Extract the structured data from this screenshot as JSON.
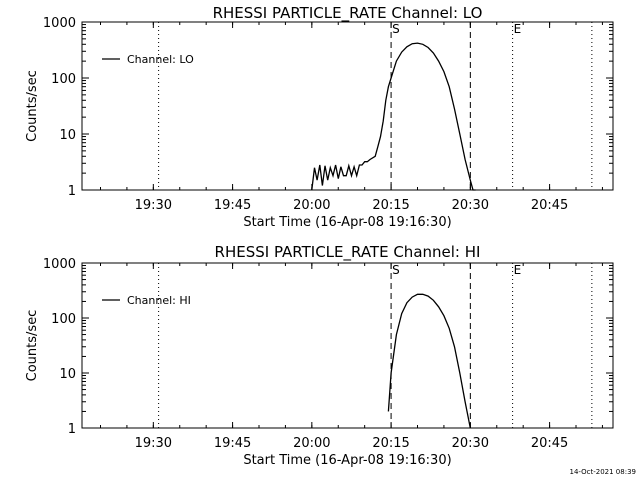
{
  "footer_timestamp": "14-Oct-2021 08:39",
  "colors": {
    "background": "#ffffff",
    "ink": "#000000"
  },
  "chart_data": [
    {
      "type": "line",
      "title": "RHESSI PARTICLE_RATE Channel: LO",
      "xlabel": "Start Time (16-Apr-08 19:16:30)",
      "ylabel": "Counts/sec",
      "xlim": [
        "19:16:30",
        "20:57:00"
      ],
      "x_ticks": [
        "19:30",
        "19:45",
        "20:00",
        "20:15",
        "20:30",
        "20:45"
      ],
      "ylim": [
        1,
        1000
      ],
      "y_scale": "log",
      "y_ticks": [
        "1",
        "10",
        "100",
        "1000"
      ],
      "grid": false,
      "legend_position": "top-left",
      "series": [
        {
          "name": "Channel: LO",
          "x": [
            "20:00:00",
            "20:00:30",
            "20:01:00",
            "20:01:30",
            "20:02:00",
            "20:02:30",
            "20:03:00",
            "20:03:30",
            "20:04:00",
            "20:04:30",
            "20:05:00",
            "20:05:30",
            "20:06:00",
            "20:06:30",
            "20:07:00",
            "20:07:30",
            "20:08:00",
            "20:08:30",
            "20:09:00",
            "20:09:30",
            "20:10:00",
            "20:10:30",
            "20:11:00",
            "20:12:00",
            "20:12:30",
            "20:13:00",
            "20:13:30",
            "20:14:00",
            "20:14:30",
            "20:15:00",
            "20:16:00",
            "20:17:00",
            "20:18:00",
            "20:19:00",
            "20:20:00",
            "20:21:00",
            "20:22:00",
            "20:23:00",
            "20:24:00",
            "20:25:00",
            "20:26:00",
            "20:27:00",
            "20:28:00",
            "20:29:00",
            "20:30:00",
            "20:30:30",
            "20:31:00"
          ],
          "y": [
            1,
            2.5,
            1.5,
            2.8,
            1.2,
            2.7,
            1.5,
            2.5,
            1.8,
            2.8,
            1.6,
            2.6,
            1.8,
            1.8,
            2.7,
            1.8,
            2.6,
            1.8,
            2.8,
            2.8,
            3.2,
            3.2,
            3.5,
            4,
            6,
            9,
            17,
            40,
            70,
            100,
            200,
            290,
            360,
            410,
            420,
            400,
            350,
            280,
            200,
            130,
            70,
            28,
            10,
            3.5,
            1.5,
            1,
            1
          ]
        }
      ],
      "markers": [
        {
          "x": "19:31:00",
          "style": "dotted",
          "label": ""
        },
        {
          "x": "20:15:00",
          "style": "dashed",
          "label": "S"
        },
        {
          "x": "20:30:00",
          "style": "dashed",
          "label": ""
        },
        {
          "x": "20:38:00",
          "style": "dotted",
          "label": "E"
        },
        {
          "x": "20:53:00",
          "style": "dotted",
          "label": ""
        }
      ]
    },
    {
      "type": "line",
      "title": "RHESSI PARTICLE_RATE Channel: HI",
      "xlabel": "Start Time (16-Apr-08 19:16:30)",
      "ylabel": "Counts/sec",
      "xlim": [
        "19:16:30",
        "20:57:00"
      ],
      "x_ticks": [
        "19:30",
        "19:45",
        "20:00",
        "20:15",
        "20:30",
        "20:45"
      ],
      "ylim": [
        1,
        1000
      ],
      "y_scale": "log",
      "y_ticks": [
        "1",
        "10",
        "100",
        "1000"
      ],
      "grid": false,
      "legend_position": "top-left",
      "series": [
        {
          "name": "Channel: HI",
          "x": [
            "20:14:30",
            "20:15:00",
            "20:16:00",
            "20:17:00",
            "20:18:00",
            "20:19:00",
            "20:20:00",
            "20:21:00",
            "20:22:00",
            "20:23:00",
            "20:24:00",
            "20:25:00",
            "20:26:00",
            "20:27:00",
            "20:28:00",
            "20:29:00",
            "20:30:00"
          ],
          "y": [
            2,
            10,
            50,
            120,
            190,
            240,
            270,
            270,
            250,
            210,
            160,
            110,
            65,
            30,
            10,
            3,
            1
          ]
        }
      ],
      "markers": [
        {
          "x": "19:31:00",
          "style": "dotted",
          "label": ""
        },
        {
          "x": "20:15:00",
          "style": "dashed",
          "label": "S"
        },
        {
          "x": "20:30:00",
          "style": "dashed",
          "label": ""
        },
        {
          "x": "20:38:00",
          "style": "dotted",
          "label": "E"
        },
        {
          "x": "20:53:00",
          "style": "dotted",
          "label": ""
        }
      ]
    }
  ]
}
